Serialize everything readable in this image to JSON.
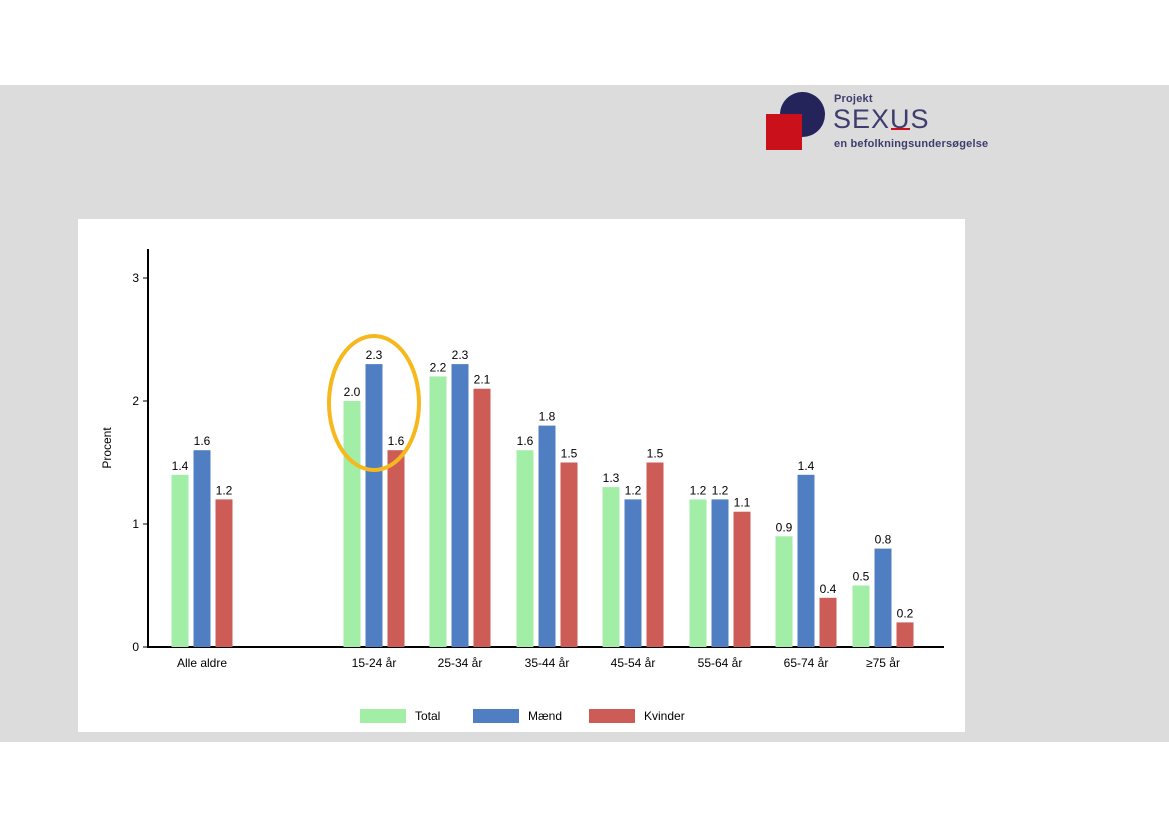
{
  "logo": {
    "line1": "Projekt",
    "name_a": "SEX",
    "name_b": "U",
    "name_c": "S",
    "line3": "en befolkningsundersøgelse"
  },
  "colors": {
    "Total": "#a3eea6",
    "Mænd": "#4f7fc2",
    "Kvinder": "#cd5c57",
    "highlight": "#f6b81c",
    "band": "#dcdcdc"
  },
  "chart_data": {
    "type": "bar",
    "ylabel": "Procent",
    "xlabel": "",
    "ylim": [
      0,
      3.2
    ],
    "yticks": [
      "0",
      "1",
      "2",
      "3"
    ],
    "categories": [
      "Alle aldre",
      "15-24 år",
      "25-34 år",
      "35-44 år",
      "45-54 år",
      "55-64 år",
      "65-74 år",
      "≥75 år"
    ],
    "series": [
      {
        "name": "Total",
        "values": [
          1.4,
          2.0,
          2.2,
          1.6,
          1.3,
          1.2,
          0.9,
          0.5
        ],
        "labels": [
          "1.4",
          "2.0",
          "2.2",
          "1.6",
          "1.3",
          "1.2",
          "0.9",
          "0.5"
        ]
      },
      {
        "name": "Mænd",
        "values": [
          1.6,
          2.3,
          2.3,
          1.8,
          1.2,
          1.2,
          1.4,
          0.8
        ],
        "labels": [
          "1.6",
          "2.3",
          "2.3",
          "1.8",
          "1.2",
          "1.2",
          "1.4",
          "0.8"
        ]
      },
      {
        "name": "Kvinder",
        "values": [
          1.2,
          1.6,
          2.1,
          1.5,
          1.5,
          1.1,
          0.4,
          0.2
        ],
        "labels": [
          "1.2",
          "1.6",
          "2.1",
          "1.5",
          "1.5",
          "1.1",
          "0.4",
          "0.2"
        ]
      }
    ],
    "legend": "bottom",
    "grid": false,
    "highlighted_category": "15-24 år"
  }
}
